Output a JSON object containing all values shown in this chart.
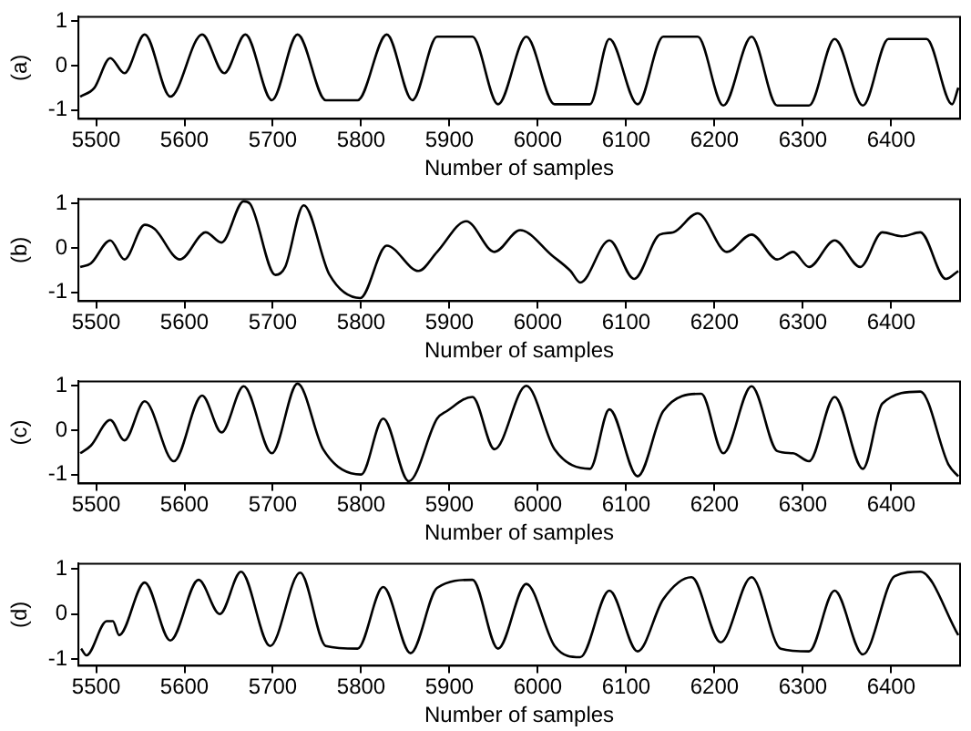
{
  "chart_data": [
    {
      "type": "line",
      "ylabel": "(a)",
      "xlabel": "Number of samples",
      "xlim": [
        5480,
        6478
      ],
      "ylim": [
        -1.2,
        1.1
      ],
      "xticks": [
        5500,
        5600,
        5700,
        5800,
        5900,
        6000,
        6100,
        6200,
        6300,
        6400
      ],
      "yticks": [
        -1,
        0,
        1
      ],
      "grid": false,
      "marker": "none",
      "line_style": "solid",
      "x": [
        5482,
        5498,
        5516,
        5532,
        5555,
        5584,
        5620,
        5645,
        5669,
        5699,
        5728,
        5760,
        5796,
        5829,
        5858,
        5886,
        5926,
        5955,
        5987,
        6019,
        6059,
        6081,
        6113,
        6142,
        6181,
        6210,
        6242,
        6271,
        6307,
        6336,
        6368,
        6397,
        6440,
        6469,
        6476
      ],
      "series": [
        {
          "color": "#000000",
          "values": [
            -0.7,
            -0.5,
            0.17,
            -0.17,
            0.7,
            -0.7,
            0.7,
            -0.17,
            0.7,
            -0.78,
            0.7,
            -0.78,
            -0.78,
            0.7,
            -0.78,
            0.65,
            0.65,
            -0.87,
            0.65,
            -0.87,
            -0.87,
            0.6,
            -0.87,
            0.65,
            0.65,
            -0.9,
            0.65,
            -0.9,
            -0.9,
            0.6,
            -0.9,
            0.6,
            0.6,
            -0.87,
            -0.5
          ]
        }
      ]
    },
    {
      "type": "line",
      "ylabel": "(b)",
      "xlabel": "Number of samples",
      "xlim": [
        5480,
        6478
      ],
      "ylim": [
        -1.2,
        1.1
      ],
      "xticks": [
        5500,
        5600,
        5700,
        5800,
        5900,
        6000,
        6100,
        6200,
        6300,
        6400
      ],
      "yticks": [
        -1,
        0,
        1
      ],
      "grid": false,
      "marker": "none",
      "line_style": "solid",
      "x": [
        5482,
        5494,
        5516,
        5532,
        5555,
        5566,
        5595,
        5624,
        5642,
        5667,
        5674,
        5703,
        5714,
        5735,
        5764,
        5799,
        5829,
        5865,
        5886,
        5919,
        5951,
        5980,
        6016,
        6037,
        6048,
        6081,
        6109,
        6138,
        6153,
        6181,
        6214,
        6242,
        6271,
        6289,
        6307,
        6336,
        6365,
        6390,
        6412,
        6433,
        6462,
        6476
      ],
      "series": [
        {
          "color": "#000000",
          "values": [
            -0.43,
            -0.35,
            0.17,
            -0.26,
            0.52,
            0.43,
            -0.26,
            0.35,
            0.12,
            1.05,
            1.0,
            -0.61,
            -0.43,
            0.96,
            -0.6,
            -1.13,
            0.05,
            -0.52,
            -0.09,
            0.6,
            -0.09,
            0.4,
            -0.17,
            -0.52,
            -0.78,
            0.17,
            -0.7,
            0.3,
            0.35,
            0.78,
            -0.09,
            0.3,
            -0.26,
            -0.09,
            -0.43,
            0.17,
            -0.43,
            0.35,
            0.26,
            0.35,
            -0.7,
            -0.52
          ]
        }
      ]
    },
    {
      "type": "line",
      "ylabel": "(c)",
      "xlabel": "Number of samples",
      "xlim": [
        5480,
        6478
      ],
      "ylim": [
        -1.2,
        1.1
      ],
      "xticks": [
        5500,
        5600,
        5700,
        5800,
        5900,
        6000,
        6100,
        6200,
        6300,
        6400
      ],
      "yticks": [
        -1,
        0,
        1
      ],
      "grid": false,
      "marker": "none",
      "line_style": "solid",
      "x": [
        5482,
        5494,
        5516,
        5532,
        5555,
        5588,
        5620,
        5642,
        5667,
        5699,
        5728,
        5757,
        5800,
        5825,
        5854,
        5886,
        5897,
        5926,
        5951,
        5987,
        6019,
        6059,
        6081,
        6113,
        6142,
        6185,
        6210,
        6242,
        6271,
        6289,
        6307,
        6336,
        6368,
        6390,
        6433,
        6465,
        6476
      ],
      "series": [
        {
          "color": "#000000",
          "values": [
            -0.52,
            -0.35,
            0.23,
            -0.23,
            0.65,
            -0.7,
            0.78,
            -0.05,
            0.99,
            -0.52,
            1.05,
            -0.43,
            -1.0,
            0.26,
            -1.15,
            0.26,
            0.43,
            0.75,
            -0.43,
            1.0,
            -0.43,
            -0.87,
            0.47,
            -1.04,
            0.43,
            0.82,
            -0.52,
            0.99,
            -0.47,
            -0.52,
            -0.7,
            0.75,
            -0.87,
            0.6,
            0.87,
            -0.78,
            -1.04
          ]
        }
      ]
    },
    {
      "type": "line",
      "ylabel": "(d)",
      "xlabel": "Number of samples",
      "xlim": [
        5480,
        6478
      ],
      "ylim": [
        -1.15,
        1.12
      ],
      "xticks": [
        5500,
        5600,
        5700,
        5800,
        5900,
        6000,
        6100,
        6200,
        6300,
        6400
      ],
      "yticks": [
        -1,
        0,
        1
      ],
      "grid": false,
      "marker": "none",
      "line_style": "solid",
      "x": [
        5483,
        5489,
        5512,
        5519,
        5526,
        5555,
        5584,
        5616,
        5640,
        5664,
        5697,
        5731,
        5760,
        5796,
        5825,
        5856,
        5886,
        5926,
        5955,
        5987,
        6019,
        6048,
        6081,
        6113,
        6142,
        6174,
        6207,
        6242,
        6275,
        6307,
        6336,
        6368,
        6404,
        6433,
        6476
      ],
      "series": [
        {
          "color": "#000000",
          "values": [
            -0.77,
            -0.92,
            -0.16,
            -0.16,
            -0.47,
            0.7,
            -0.59,
            0.76,
            0,
            0.94,
            -0.71,
            0.92,
            -0.71,
            -0.77,
            0.6,
            -0.87,
            0.58,
            0.76,
            -0.77,
            0.67,
            -0.71,
            -0.96,
            0.52,
            -0.83,
            0.33,
            0.82,
            -0.63,
            0.82,
            -0.77,
            -0.83,
            0.52,
            -0.9,
            0.84,
            0.94,
            -0.47
          ]
        }
      ]
    }
  ]
}
